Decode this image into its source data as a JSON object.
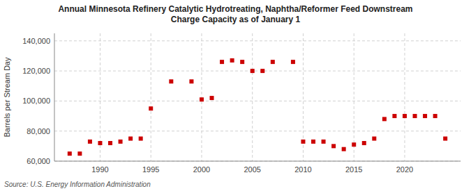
{
  "chart_data": {
    "type": "scatter",
    "title": "Annual Minnesota Refinery Catalytic Hydrotreating, Naphtha/Reformer Feed Downstream\nCharge Capacity as of January 1",
    "ylabel": "Barrels per Stream Day",
    "annotations": [
      "Source: U.S. Energy Information Administration"
    ],
    "color": "#cc0000",
    "marker": "square",
    "grid": true,
    "xlim": [
      1985.5,
      2025.5
    ],
    "xticks": [
      1990,
      1995,
      2000,
      2005,
      2010,
      2015,
      2020
    ],
    "ylim": [
      60000,
      145000
    ],
    "yticks": [
      {
        "value": 60000,
        "label": "60,000"
      },
      {
        "value": 80000,
        "label": "80,000"
      },
      {
        "value": 100000,
        "label": "100,000"
      },
      {
        "value": 120000,
        "label": "120,000"
      },
      {
        "value": 140000,
        "label": "140,000"
      }
    ],
    "x": [
      1987,
      1988,
      1989,
      1990,
      1991,
      1992,
      1993,
      1994,
      1995,
      1997,
      1999,
      2000,
      2001,
      2002,
      2003,
      2004,
      2005,
      2006,
      2007,
      2009,
      2010,
      2011,
      2012,
      2013,
      2014,
      2015,
      2016,
      2017,
      2018,
      2019,
      2020,
      2021,
      2022,
      2023,
      2024
    ],
    "values": [
      65000,
      65000,
      73000,
      72000,
      72000,
      73000,
      75000,
      75000,
      95000,
      113000,
      113000,
      101000,
      102000,
      126000,
      127000,
      126000,
      120000,
      120000,
      126000,
      126000,
      73000,
      73000,
      73000,
      70000,
      68000,
      71000,
      72000,
      75000,
      88000,
      90000,
      90000,
      90000,
      90000,
      90000,
      75000
    ]
  }
}
